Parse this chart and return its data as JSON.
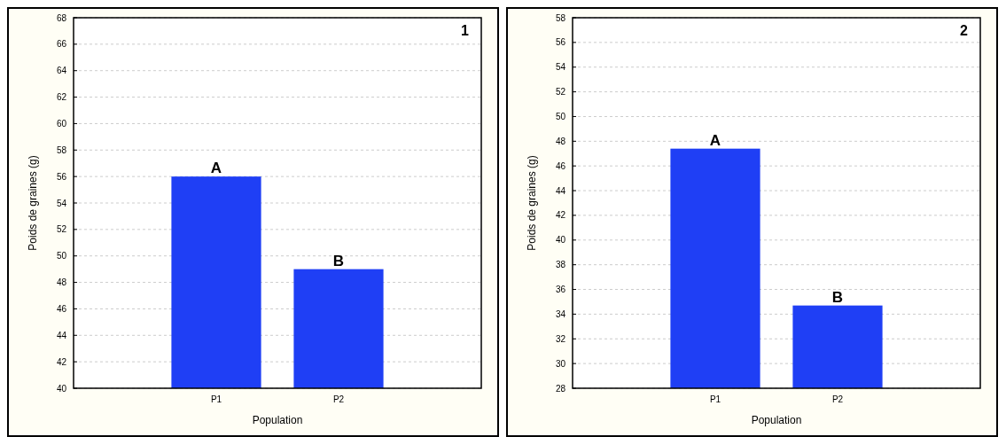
{
  "chart_data": [
    {
      "type": "bar",
      "title": "1",
      "categories": [
        "P1",
        "P2"
      ],
      "values": [
        56,
        49
      ],
      "color": "#1f3ff5",
      "xlabel": "Population",
      "ylabel": "Poids de graines (g)",
      "ylim": [
        40,
        68
      ],
      "yticks": [
        40,
        42,
        44,
        46,
        48,
        50,
        52,
        54,
        56,
        58,
        60,
        62,
        64,
        66,
        68
      ],
      "grid": "y",
      "annotations": [
        {
          "text": "A",
          "x": "P1",
          "y": 56
        },
        {
          "text": "B",
          "x": "P2",
          "y": 49
        }
      ]
    },
    {
      "type": "bar",
      "title": "2",
      "categories": [
        "P1",
        "P2"
      ],
      "values": [
        47.4,
        34.7
      ],
      "color": "#1f3ff5",
      "xlabel": "Population",
      "ylabel": "Poids de graines (g)",
      "ylim": [
        28,
        58
      ],
      "yticks": [
        28,
        30,
        32,
        34,
        36,
        38,
        40,
        42,
        44,
        46,
        48,
        50,
        52,
        54,
        56,
        58
      ],
      "grid": "y",
      "annotations": [
        {
          "text": "A",
          "x": "P1",
          "y": 47.4
        },
        {
          "text": "B",
          "x": "P2",
          "y": 34.7
        }
      ]
    }
  ]
}
